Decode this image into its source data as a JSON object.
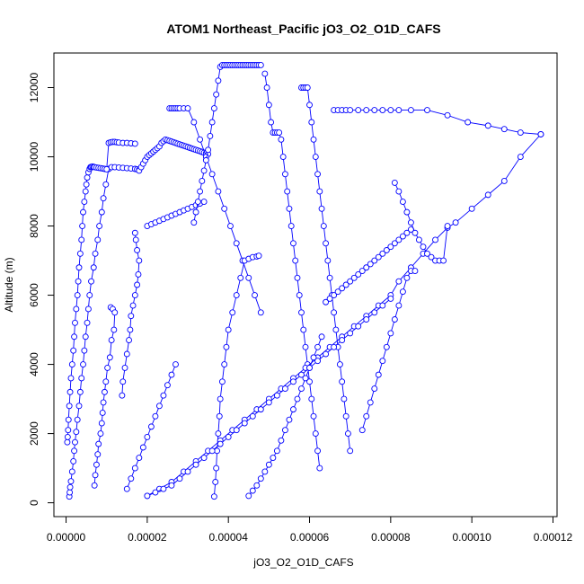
{
  "chart_data": {
    "type": "line",
    "title": "ATOM1 Northeast_Pacific jO3_O2_O1D_CAFS",
    "xlabel": "jO3_O2_O1D_CAFS",
    "ylabel": "Altitude (m)",
    "xlim": [
      -3e-06,
      0.000121
    ],
    "ylim": [
      -400,
      13000
    ],
    "xticks": [
      0,
      2e-05,
      4e-05,
      6e-05,
      8e-05,
      0.0001,
      0.00012
    ],
    "xtick_labels": [
      "0.00000",
      "0.00002",
      "0.00004",
      "0.00006",
      "0.00008",
      "0.00010",
      "0.00012"
    ],
    "yticks": [
      0,
      2000,
      4000,
      6000,
      8000,
      10000,
      12000
    ],
    "ytick_labels": [
      "0",
      "2000",
      "4000",
      "6000",
      "8000",
      "10000",
      "12000"
    ],
    "colors": {
      "series": "#0000ff",
      "axis": "#000000"
    },
    "series": [
      {
        "x": [
          8e-07,
          9e-07,
          1e-06,
          1.2e-06,
          1.5e-06,
          1.8e-06,
          2e-06,
          2.2e-06,
          2.5e-06,
          2.8e-06,
          3.2e-06,
          3.5e-06,
          3.8e-06,
          4.2e-06,
          4.5e-06,
          4.8e-06,
          5.2e-06,
          5.5e-06,
          5.8e-06,
          6.2e-06,
          6.8e-06,
          7.2e-06,
          7.8e-06,
          8.2e-06,
          8.8e-06,
          9.2e-06,
          9.8e-06,
          1.05e-05,
          1.12e-05,
          1.2e-05,
          1.3e-05,
          1.4e-05,
          1.5e-05,
          1.6e-05,
          1.7e-05,
          1.75e-05,
          1.8e-05
        ],
        "y": [
          180,
          300,
          450,
          620,
          900,
          1200,
          1500,
          1750,
          2050,
          2400,
          2800,
          3200,
          3600,
          4000,
          4400,
          4800,
          5200,
          5600,
          6000,
          6400,
          6800,
          7200,
          7600,
          8000,
          8400,
          8800,
          9200,
          9650,
          9700,
          9700,
          9690,
          9680,
          9670,
          9660,
          9650,
          9640,
          9630
        ]
      },
      {
        "x": [
          3e-07,
          4e-07,
          5e-07,
          6e-07,
          8e-07,
          1e-06,
          1.2e-06,
          1.5e-06,
          1.8e-06,
          2e-06,
          2.2e-06,
          2.5e-06,
          2.8e-06,
          3e-06,
          3.2e-06,
          3.5e-06,
          3.8e-06,
          4e-06,
          4.2e-06,
          4.5e-06,
          4.8e-06,
          5e-06,
          5.2e-06,
          5.5e-06,
          5.8e-06,
          6e-06,
          6.2e-06,
          6.5e-06,
          6.8e-06,
          7e-06,
          7.5e-06,
          8e-06,
          8.5e-06,
          9e-06,
          9.5e-06,
          1e-05,
          1.05e-05,
          1.1e-05,
          1.15e-05,
          1.2e-05,
          1.25e-05,
          1.3e-05,
          1.4e-05,
          1.5e-05,
          1.6e-05,
          1.7e-05
        ],
        "y": [
          1750,
          1900,
          2100,
          2400,
          2800,
          3200,
          3600,
          4000,
          4400,
          4800,
          5200,
          5600,
          6000,
          6400,
          6800,
          7200,
          7600,
          8000,
          8400,
          8700,
          9000,
          9200,
          9400,
          9550,
          9650,
          9700,
          9710,
          9720,
          9710,
          9700,
          9690,
          9680,
          9670,
          9660,
          9650,
          9640,
          10400,
          10420,
          10430,
          10430,
          10420,
          10410,
          10400,
          10400,
          10390,
          10380
        ]
      },
      {
        "x": [
          1.1e-05,
          1.15e-05,
          1.2e-05,
          1.18e-05,
          1.12e-05,
          1.08e-05,
          1.02e-05,
          9.8e-06,
          9.5e-06,
          9.2e-06,
          9e-06,
          8.8e-06,
          8.5e-06,
          8e-06,
          7.8e-06,
          7.5e-06,
          7.2e-06,
          7e-06
        ],
        "y": [
          5650,
          5600,
          5500,
          5000,
          4700,
          4200,
          3900,
          3500,
          3200,
          2900,
          2600,
          2300,
          2000,
          1700,
          1400,
          1100,
          800,
          500
        ]
      },
      {
        "x": [
          1.7e-05,
          1.72e-05,
          1.75e-05,
          1.8e-05,
          1.78e-05,
          1.75e-05,
          1.7e-05,
          1.65e-05,
          1.6e-05,
          1.58e-05,
          1.55e-05,
          1.5e-05,
          1.45e-05,
          1.4e-05,
          1.38e-05
        ],
        "y": [
          7800,
          7600,
          7300,
          7000,
          6600,
          6300,
          6000,
          5700,
          5400,
          5000,
          4700,
          4300,
          3900,
          3500,
          3100
        ]
      },
      {
        "x": [
          1.8e-05,
          1.85e-05,
          1.9e-05,
          1.95e-05,
          2e-05,
          2.05e-05,
          2.1e-05,
          2.15e-05,
          2.2e-05,
          2.25e-05,
          2.3e-05,
          2.35e-05,
          2.4e-05,
          2.45e-05,
          2.5e-05,
          2.55e-05,
          2.6e-05,
          2.65e-05,
          2.7e-05,
          2.75e-05,
          2.8e-05,
          2.85e-05,
          2.9e-05,
          2.95e-05,
          3e-05,
          3.05e-05,
          3.1e-05,
          3.15e-05,
          3.2e-05,
          3.25e-05,
          3.3e-05,
          3.35e-05,
          3.4e-05,
          3.45e-05,
          3.5e-05
        ],
        "y": [
          9600,
          9700,
          9800,
          9900,
          10000,
          10050,
          10100,
          10150,
          10200,
          10250,
          10300,
          10400,
          10450,
          10500,
          10480,
          10460,
          10440,
          10420,
          10400,
          10380,
          10360,
          10340,
          10320,
          10300,
          10280,
          10260,
          10240,
          10220,
          10200,
          10180,
          10160,
          10140,
          10120,
          10100,
          10080
        ]
      },
      {
        "x": [
          2e-05,
          2.1e-05,
          2.2e-05,
          2.3e-05,
          2.4e-05,
          2.5e-05,
          2.6e-05,
          2.7e-05,
          2.8e-05,
          2.9e-05,
          3e-05,
          3.1e-05,
          3.2e-05,
          3.3e-05,
          3.4e-05
        ],
        "y": [
          8000,
          8050,
          8100,
          8150,
          8200,
          8250,
          8300,
          8350,
          8400,
          8450,
          8500,
          8550,
          8600,
          8650,
          8700
        ]
      },
      {
        "x": [
          2.55e-05,
          2.6e-05,
          2.65e-05,
          2.7e-05,
          2.75e-05,
          2.8e-05,
          2.9e-05,
          3e-05,
          3.15e-05,
          3.3e-05,
          3.45e-05,
          3.6e-05,
          3.75e-05,
          3.9e-05,
          4.05e-05,
          4.2e-05,
          4.35e-05,
          4.5e-05,
          4.65e-05,
          4.8e-05
        ],
        "y": [
          11400,
          11400,
          11400,
          11400,
          11400,
          11400,
          11400,
          11400,
          11000,
          10500,
          10000,
          9500,
          9000,
          8500,
          8000,
          7500,
          7000,
          6500,
          6000,
          5500
        ]
      },
      {
        "x": [
          3.65e-05,
          3.68e-05,
          3.7e-05,
          3.72e-05,
          3.75e-05,
          3.78e-05,
          3.8e-05,
          3.85e-05,
          3.9e-05,
          3.95e-05,
          4e-05,
          4.1e-05,
          4.2e-05,
          4.3e-05,
          4.4e-05,
          4.5e-05,
          4.6e-05,
          4.7e-05,
          4.75e-05
        ],
        "y": [
          180,
          600,
          1000,
          1500,
          2000,
          2500,
          3000,
          3500,
          4000,
          4500,
          5000,
          5500,
          6000,
          6500,
          7000,
          7050,
          7100,
          7120,
          7140
        ]
      },
      {
        "x": [
          3.15e-05,
          3.2e-05,
          3.25e-05,
          3.3e-05,
          3.35e-05,
          3.4e-05,
          3.45e-05,
          3.5e-05,
          3.55e-05,
          3.6e-05,
          3.65e-05,
          3.7e-05,
          3.75e-05,
          3.8e-05,
          3.85e-05,
          3.9e-05,
          3.95e-05,
          4e-05,
          4.05e-05,
          4.1e-05,
          4.15e-05,
          4.2e-05,
          4.25e-05,
          4.3e-05,
          4.35e-05,
          4.4e-05,
          4.45e-05,
          4.5e-05,
          4.55e-05,
          4.6e-05,
          4.65e-05,
          4.7e-05,
          4.75e-05,
          4.8e-05
        ],
        "y": [
          8100,
          8400,
          8700,
          9000,
          9300,
          9600,
          9900,
          10200,
          10600,
          11000,
          11400,
          11800,
          12200,
          12600,
          12650,
          12650,
          12650,
          12650,
          12650,
          12650,
          12650,
          12650,
          12650,
          12650,
          12650,
          12650,
          12650,
          12650,
          12650,
          12650,
          12650,
          12650,
          12650,
          12650
        ]
      },
      {
        "x": [
          4.9e-05,
          4.95e-05,
          5e-05,
          5.05e-05,
          5.1e-05,
          5.15e-05,
          5.2e-05,
          5.25e-05,
          5.3e-05,
          5.35e-05,
          5.4e-05,
          5.45e-05,
          5.5e-05,
          5.55e-05,
          5.6e-05,
          5.65e-05,
          5.7e-05,
          5.75e-05,
          5.8e-05,
          5.85e-05,
          5.9e-05,
          5.95e-05,
          6e-05,
          6.05e-05,
          6.1e-05,
          6.15e-05,
          6.2e-05,
          6.25e-05
        ],
        "y": [
          12400,
          12000,
          11500,
          11000,
          10700,
          10700,
          10700,
          10700,
          10500,
          10000,
          9500,
          9000,
          8500,
          8000,
          7500,
          7000,
          6500,
          6000,
          5500,
          5000,
          4500,
          4000,
          3500,
          3000,
          2500,
          2000,
          1500,
          1000
        ]
      },
      {
        "x": [
          5.8e-05,
          5.85e-05,
          5.9e-05,
          5.95e-05,
          6e-05,
          6.05e-05,
          6.1e-05,
          6.15e-05,
          6.2e-05,
          6.25e-05,
          6.3e-05,
          6.35e-05,
          6.4e-05,
          6.45e-05,
          6.5e-05,
          6.55e-05,
          6.6e-05,
          6.65e-05,
          6.7e-05,
          6.75e-05,
          6.8e-05,
          6.85e-05,
          6.9e-05,
          6.95e-05,
          7e-05
        ],
        "y": [
          12000,
          12000,
          12000,
          12000,
          11500,
          11000,
          10500,
          10000,
          9500,
          9000,
          8500,
          8000,
          7500,
          7000,
          6500,
          6000,
          5500,
          5000,
          4500,
          4000,
          3500,
          3000,
          2500,
          2000,
          1500
        ]
      },
      {
        "x": [
          6.6e-05,
          6.7e-05,
          6.8e-05,
          6.9e-05,
          7e-05,
          7.2e-05,
          7.4e-05,
          7.6e-05,
          7.8e-05,
          8e-05,
          8.2e-05,
          8.5e-05,
          8.9e-05,
          9.4e-05,
          9.9e-05,
          0.000104,
          0.000108,
          0.000112,
          0.000117
        ],
        "y": [
          11350,
          11350,
          11350,
          11350,
          11350,
          11350,
          11350,
          11350,
          11350,
          11350,
          11350,
          11350,
          11350,
          11200,
          11000,
          10900,
          10800,
          10700,
          10650
        ]
      },
      {
        "x": [
          0.000117,
          0.000112,
          0.000108,
          0.000104,
          0.0001,
          9.6e-05,
          9.4e-05,
          9.1e-05,
          8.8e-05,
          8.5e-05,
          8.2e-05,
          8e-05,
          7.7e-05,
          7.4e-05,
          7.1e-05,
          6.8e-05,
          6.5e-05,
          6.2e-05,
          5.9e-05,
          5.6e-05,
          5.3e-05,
          5e-05,
          4.7e-05,
          4.4e-05,
          4.1e-05,
          3.8e-05,
          3.5e-05,
          3.2e-05,
          2.9e-05,
          2.6e-05,
          2.3e-05,
          2e-05
        ],
        "y": [
          10650,
          10000,
          9300,
          8900,
          8500,
          8100,
          7950,
          7600,
          7200,
          6800,
          6400,
          6000,
          5700,
          5400,
          5100,
          4800,
          4500,
          4200,
          3900,
          3600,
          3300,
          3000,
          2700,
          2400,
          2100,
          1800,
          1500,
          1200,
          900,
          600,
          400,
          200
        ]
      },
      {
        "x": [
          2e-05,
          2.2e-05,
          2.4e-05,
          2.6e-05,
          2.8e-05,
          3e-05,
          3.2e-05,
          3.4e-05,
          3.6e-05,
          3.8e-05,
          4e-05,
          4.2e-05,
          4.4e-05,
          4.6e-05,
          4.8e-05,
          5e-05,
          5.2e-05,
          5.4e-05,
          5.6e-05,
          5.8e-05,
          6e-05,
          6.2e-05,
          6.4e-05,
          6.6e-05,
          6.8e-05,
          7e-05,
          7.2e-05,
          7.4e-05,
          7.6e-05,
          7.8e-05,
          8e-05
        ],
        "y": [
          200,
          300,
          400,
          500,
          700,
          900,
          1100,
          1300,
          1500,
          1700,
          1900,
          2100,
          2300,
          2500,
          2700,
          2900,
          3100,
          3300,
          3500,
          3700,
          3900,
          4100,
          4300,
          4500,
          4700,
          4900,
          5100,
          5300,
          5500,
          5700,
          5900
        ]
      },
      {
        "x": [
          4.5e-05,
          4.6e-05,
          4.7e-05,
          4.8e-05,
          4.9e-05,
          5e-05,
          5.1e-05,
          5.2e-05,
          5.3e-05,
          5.4e-05,
          5.5e-05,
          5.6e-05,
          5.7e-05,
          5.8e-05,
          5.9e-05,
          6e-05,
          6.1e-05,
          6.2e-05,
          6.3e-05
        ],
        "y": [
          200,
          350,
          500,
          700,
          900,
          1100,
          1300,
          1500,
          1800,
          2100,
          2400,
          2700,
          3000,
          3300,
          3600,
          3900,
          4200,
          4500,
          4800
        ]
      },
      {
        "x": [
          6.4e-05,
          6.5e-05,
          6.6e-05,
          6.7e-05,
          6.8e-05,
          6.9e-05,
          7e-05,
          7.1e-05,
          7.2e-05,
          7.3e-05,
          7.4e-05,
          7.5e-05,
          7.6e-05,
          7.7e-05,
          7.8e-05,
          7.9e-05,
          8e-05,
          8.1e-05,
          8.2e-05,
          8.3e-05,
          8.4e-05,
          8.5e-05
        ],
        "y": [
          5800,
          5900,
          6000,
          6100,
          6200,
          6300,
          6400,
          6500,
          6600,
          6700,
          6800,
          6900,
          7000,
          7100,
          7200,
          7300,
          7400,
          7500,
          7600,
          7700,
          7800,
          7900
        ]
      },
      {
        "x": [
          8.1e-05,
          8.2e-05,
          8.3e-05,
          8.4e-05,
          8.5e-05,
          8.6e-05,
          8.7e-05,
          8.8e-05,
          8.9e-05,
          9e-05,
          9.1e-05,
          9.2e-05,
          9.3e-05,
          9.4e-05
        ],
        "y": [
          9250,
          9000,
          8700,
          8400,
          8100,
          7800,
          7600,
          7400,
          7200,
          7100,
          7000,
          7000,
          7000,
          8000
        ]
      },
      {
        "x": [
          7.3e-05,
          7.4e-05,
          7.5e-05,
          7.6e-05,
          7.7e-05,
          7.8e-05,
          7.9e-05,
          8e-05,
          8.1e-05,
          8.2e-05,
          8.3e-05,
          8.4e-05,
          8.5e-05,
          8.6e-05
        ],
        "y": [
          2100,
          2500,
          2900,
          3300,
          3700,
          4100,
          4500,
          4900,
          5300,
          5700,
          6100,
          6500,
          6700,
          6700
        ]
      },
      {
        "x": [
          1.5e-05,
          1.6e-05,
          1.7e-05,
          1.8e-05,
          1.9e-05,
          2e-05,
          2.1e-05,
          2.2e-05,
          2.3e-05,
          2.4e-05,
          2.5e-05,
          2.6e-05,
          2.7e-05
        ],
        "y": [
          400,
          700,
          1000,
          1300,
          1600,
          1900,
          2200,
          2500,
          2800,
          3100,
          3400,
          3700,
          4000
        ]
      }
    ]
  }
}
